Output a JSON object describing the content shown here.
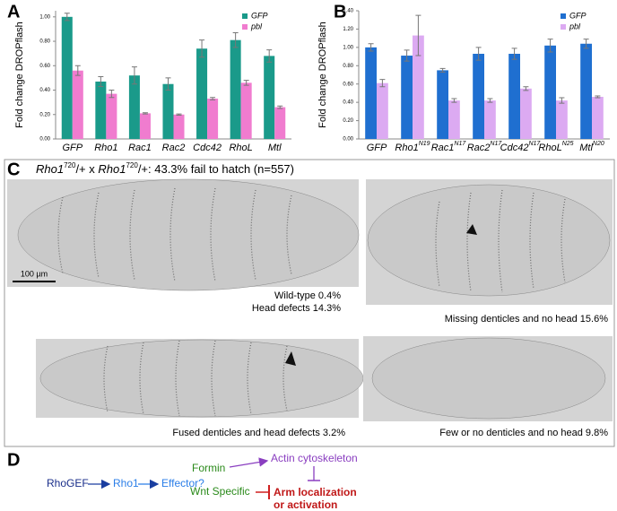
{
  "panel_labels": [
    "A",
    "B",
    "C",
    "D"
  ],
  "chart_data": [
    {
      "type": "bar",
      "ylabel": "Fold change DROPflash",
      "categories": [
        "GFP",
        "Rho1",
        "Rac1",
        "Rac2",
        "Cdc42",
        "RhoL",
        "Mtl"
      ],
      "series": [
        {
          "name": "GFP",
          "color": "#1a9a8a",
          "values": [
            1.0,
            0.47,
            0.52,
            0.45,
            0.74,
            0.81,
            0.68
          ],
          "errors": [
            0.03,
            0.04,
            0.07,
            0.05,
            0.07,
            0.06,
            0.05
          ]
        },
        {
          "name": "pbl",
          "color": "#f07ccf",
          "values": [
            0.56,
            0.37,
            0.21,
            0.2,
            0.33,
            0.46,
            0.26
          ],
          "errors": [
            0.04,
            0.03,
            0.005,
            0.005,
            0.01,
            0.02,
            0.01
          ]
        }
      ],
      "ylim": [
        0,
        1.05
      ],
      "yticks": [
        {
          "value": 0,
          "label": "0.00"
        },
        {
          "value": 0.2,
          "label": "0.20"
        },
        {
          "value": 0.4,
          "label": "0.40"
        },
        {
          "value": 0.6,
          "label": "0.60"
        },
        {
          "value": 0.8,
          "label": "0.80"
        },
        {
          "value": 1.0,
          "label": "1.00"
        }
      ],
      "legend": "top-right"
    },
    {
      "type": "bar",
      "ylabel": "Fold change DROPflash",
      "categories": [
        "GFP",
        "Rho1",
        "Rac1",
        "Rac2",
        "Cdc42",
        "RhoL",
        "Mtl"
      ],
      "category_superscripts": [
        null,
        "N19",
        "N17",
        "N17",
        "N17",
        "N25",
        "N20"
      ],
      "series": [
        {
          "name": "GFP",
          "color": "#1f6fd0",
          "values": [
            1.0,
            0.91,
            0.75,
            0.93,
            0.93,
            1.02,
            1.04
          ],
          "errors": [
            0.04,
            0.06,
            0.02,
            0.07,
            0.06,
            0.07,
            0.05
          ]
        },
        {
          "name": "pbl",
          "color": "#dcaaf2",
          "values": [
            0.61,
            1.13,
            0.42,
            0.42,
            0.55,
            0.42,
            0.46
          ],
          "errors": [
            0.04,
            0.22,
            0.02,
            0.02,
            0.02,
            0.03,
            0.01
          ]
        }
      ],
      "ylim": [
        0,
        1.4
      ],
      "yticks": [
        {
          "value": 0,
          "label": "0.00"
        },
        {
          "value": 0.2,
          "label": "0.20"
        },
        {
          "value": 0.4,
          "label": "0.40"
        },
        {
          "value": 0.6,
          "label": "0.60"
        },
        {
          "value": 0.8,
          "label": "0.80"
        },
        {
          "value": 1.0,
          "label": "1.00"
        },
        {
          "value": 1.2,
          "label": "1.20"
        },
        {
          "value": 1.4,
          "label": "1.40"
        }
      ],
      "legend": "top-right"
    }
  ],
  "panel_c": {
    "title_parts": [
      "Rho1",
      "720",
      "/+ x ",
      "Rho1",
      "720",
      "/+:  43.3% fail to hatch (n=557)"
    ],
    "scale_bar": "100 µm",
    "captions": [
      [
        "Wild-type 0.4%",
        "Head defects 14.3%"
      ],
      [
        "Missing denticles and no head 15.6%"
      ],
      [
        "Fused denticles and head defects 3.2%"
      ],
      [
        "Few or no denticles and no head 9.8%"
      ]
    ]
  },
  "panel_d": {
    "nodes": [
      "RhoGEF",
      "Rho1",
      "Effector?",
      "Formin",
      "Actin cytoskeleton",
      "Wnt Specific",
      "Arm localization",
      "or activation"
    ]
  }
}
